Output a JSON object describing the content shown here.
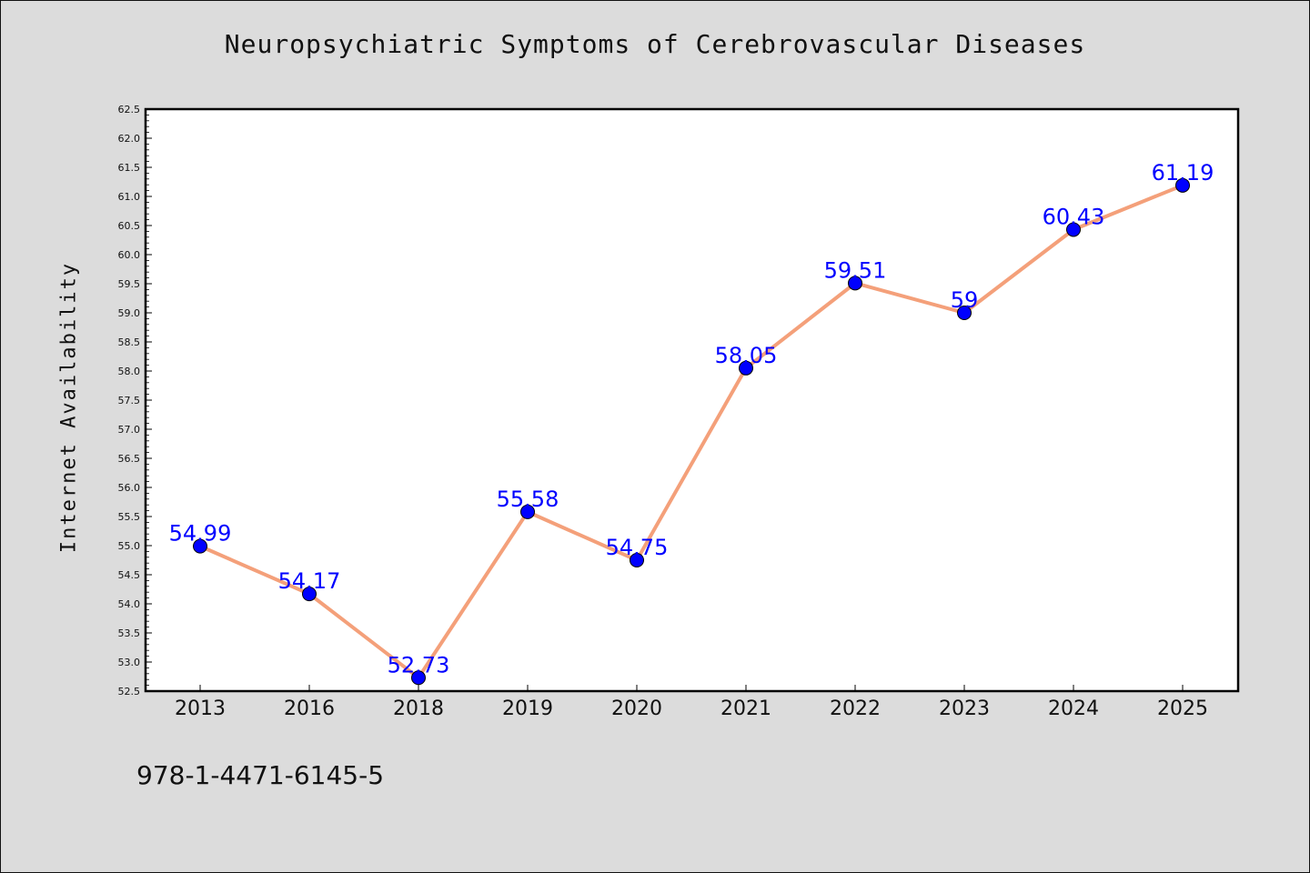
{
  "chart_data": {
    "type": "line",
    "title": "Neuropsychiatric Symptoms of Cerebrovascular Diseases",
    "ylabel": "Internet Availability",
    "xlabel": "",
    "categories": [
      "2013",
      "2016",
      "2018",
      "2019",
      "2020",
      "2021",
      "2022",
      "2023",
      "2024",
      "2025"
    ],
    "values": [
      54.99,
      54.17,
      52.73,
      55.58,
      54.75,
      58.05,
      59.51,
      59,
      60.43,
      61.19
    ],
    "data_labels": [
      "54.99",
      "54.17",
      "52.73",
      "55.58",
      "54.75",
      "58.05",
      "59.51",
      "59",
      "60.43",
      "61.19"
    ],
    "ylim": [
      52.5,
      62.5
    ],
    "yticks": [
      "52.5",
      "53.0",
      "53.5",
      "54.0",
      "54.5",
      "55.0",
      "55.5",
      "56.0",
      "56.5",
      "57.0",
      "57.5",
      "58.0",
      "58.5",
      "59.0",
      "59.5",
      "60.0",
      "60.5",
      "61.0",
      "61.5",
      "62.0",
      "62.5"
    ],
    "grid": false,
    "line_color": "#f4a07a",
    "marker_color": "#0000ff",
    "label_color": "#0000ff"
  },
  "footer": {
    "text": "978-1-4471-6145-5"
  }
}
